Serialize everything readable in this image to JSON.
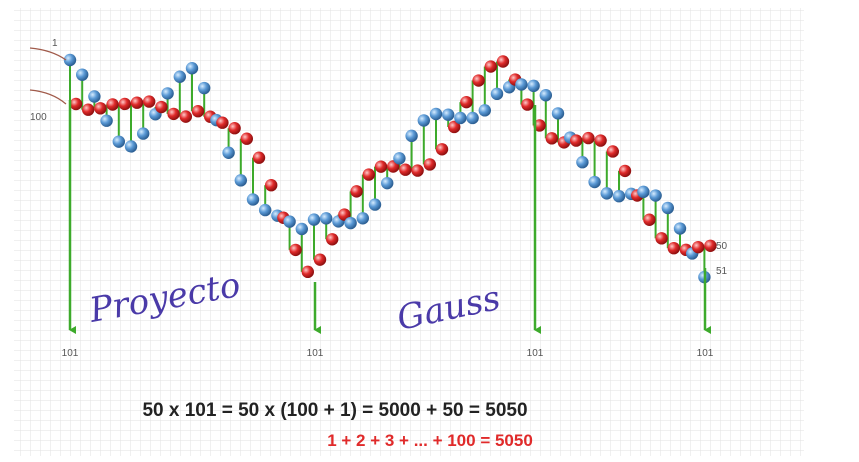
{
  "labels": {
    "start_top": "1",
    "start_bottom": "100",
    "end_top": "50",
    "end_bottom": "51"
  },
  "sums": [
    "101",
    "101",
    "101",
    "101"
  ],
  "title_words": [
    "Proyecto",
    "Gauss"
  ],
  "formula": "50 x 101 = 50 x (100 + 1) = 5000 + 50 = 5050",
  "sum_formula": "1 + 2 + 3 + ... + 100 = 5050"
}
